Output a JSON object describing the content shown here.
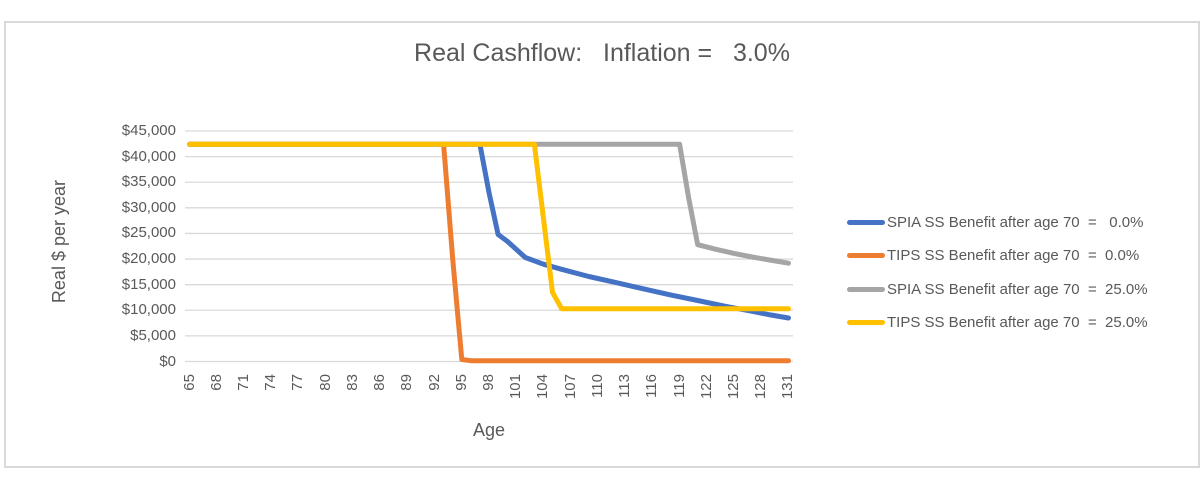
{
  "chart_data": {
    "type": "line",
    "title": "Real Cashflow:   Inflation =   3.0%",
    "legend_position": "right",
    "grid": true,
    "colors": {
      "grid_line": "#d9d9d9",
      "frame_border": "#d9d9d9",
      "text": "#595959",
      "background": "#ffffff"
    },
    "x_axis": {
      "title": "Age",
      "min": 65,
      "max": 131,
      "tick_labels": [
        "65",
        "68",
        "71",
        "74",
        "77",
        "80",
        "83",
        "86",
        "89",
        "92",
        "95",
        "98",
        "101",
        "104",
        "107",
        "110",
        "113",
        "116",
        "119",
        "122",
        "125",
        "128",
        "131"
      ]
    },
    "y_axis": {
      "title": "Real $ per year",
      "min": 0,
      "max": 45000,
      "tick_step": 5000,
      "ticks": [
        {
          "label": "$45,000",
          "value": 45000
        },
        {
          "label": "$40,000",
          "value": 40000
        },
        {
          "label": "$35,000",
          "value": 35000
        },
        {
          "label": "$30,000",
          "value": 30000
        },
        {
          "label": "$25,000",
          "value": 25000
        },
        {
          "label": "$20,000",
          "value": 20000
        },
        {
          "label": "$15,000",
          "value": 15000
        },
        {
          "label": "$10,000",
          "value": 10000
        },
        {
          "label": "$5,000",
          "value": 5000
        },
        {
          "label": "$0",
          "value": 0
        }
      ]
    },
    "series": [
      {
        "name": "SPIA SS Benefit after age 70  =   0.0%",
        "color": "#4472C4",
        "points": [
          [
            65,
            42400
          ],
          [
            97,
            42400
          ],
          [
            98,
            33000
          ],
          [
            99,
            24800
          ],
          [
            100,
            23500
          ],
          [
            102,
            20300
          ],
          [
            104,
            19000
          ],
          [
            106,
            18000
          ],
          [
            109,
            16600
          ],
          [
            112,
            15400
          ],
          [
            115,
            14200
          ],
          [
            118,
            13000
          ],
          [
            121,
            11900
          ],
          [
            124,
            10800
          ],
          [
            127,
            9800
          ],
          [
            129,
            9100
          ],
          [
            131,
            8500
          ]
        ]
      },
      {
        "name": "TIPS SS Benefit after age 70  =  0.0%",
        "color": "#ED7D31",
        "points": [
          [
            65,
            42400
          ],
          [
            93,
            42400
          ],
          [
            94,
            20000
          ],
          [
            95,
            400
          ],
          [
            96,
            150
          ],
          [
            131,
            150
          ]
        ]
      },
      {
        "name": "SPIA SS Benefit after age 70  =  25.0%",
        "color": "#A5A5A5",
        "points": [
          [
            65,
            42400
          ],
          [
            119,
            42400
          ],
          [
            120,
            32000
          ],
          [
            121,
            22800
          ],
          [
            123,
            21900
          ],
          [
            125,
            21100
          ],
          [
            127,
            20400
          ],
          [
            129,
            19800
          ],
          [
            131,
            19200
          ]
        ]
      },
      {
        "name": "TIPS SS Benefit after age 70  =  25.0%",
        "color": "#FFC000",
        "points": [
          [
            65,
            42400
          ],
          [
            103,
            42400
          ],
          [
            104,
            28000
          ],
          [
            105,
            13500
          ],
          [
            106,
            10300
          ],
          [
            131,
            10300
          ]
        ]
      }
    ]
  }
}
